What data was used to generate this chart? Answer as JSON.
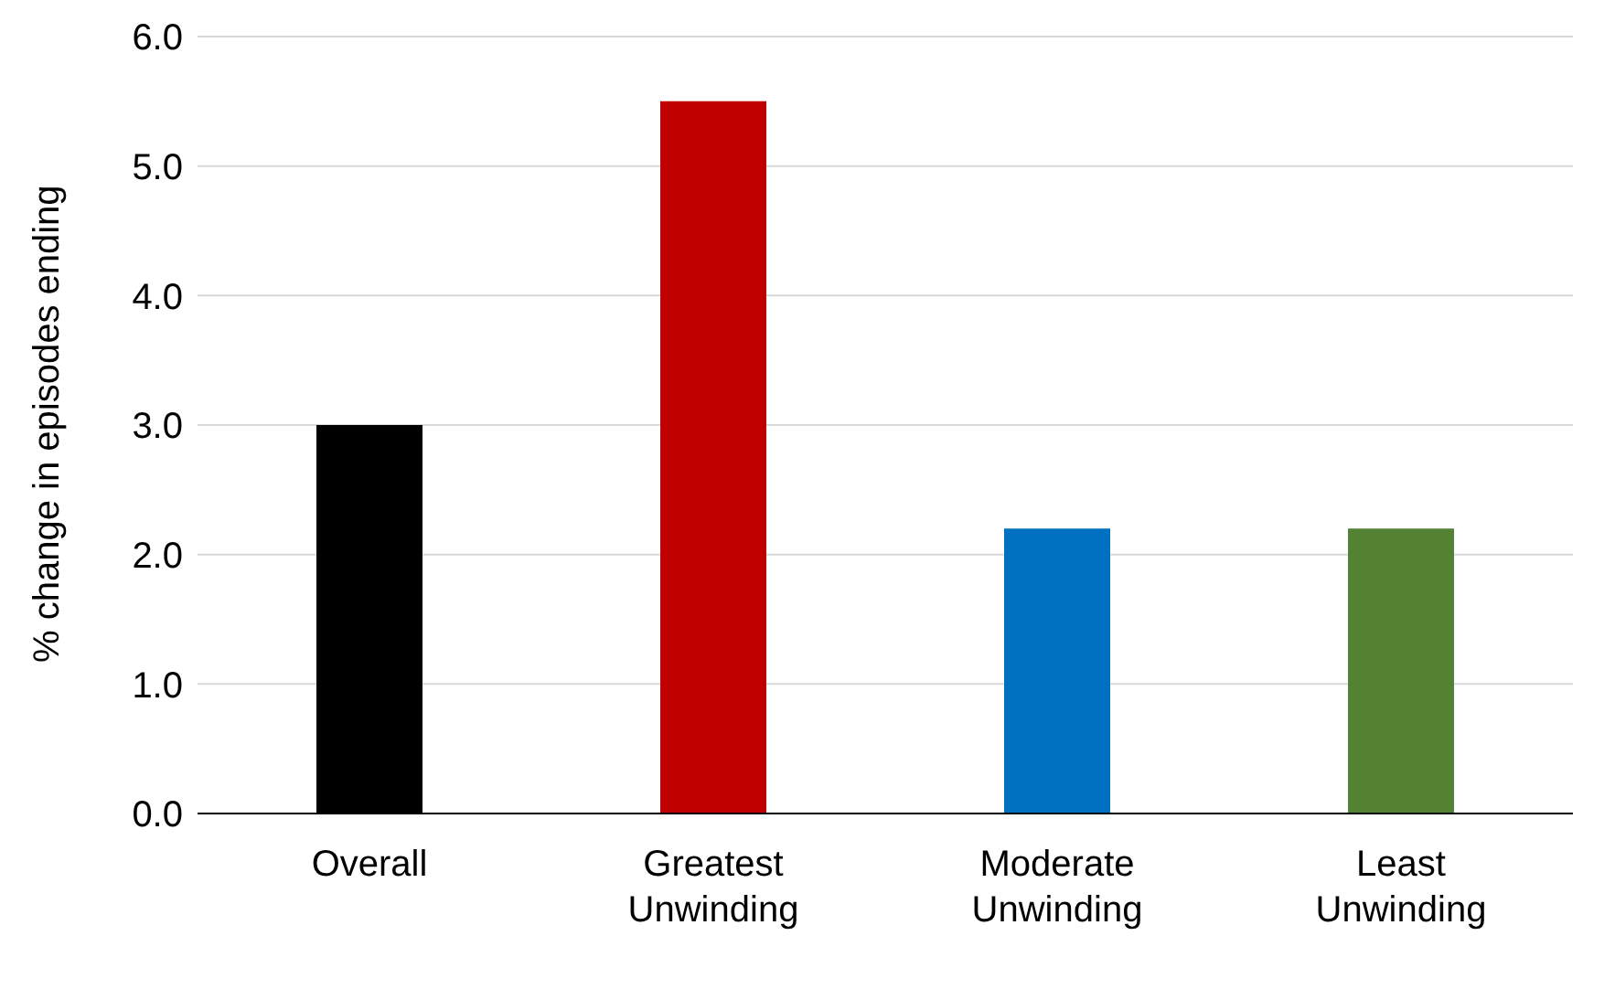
{
  "chart_data": {
    "type": "bar",
    "ylabel": "% change in episodes ending",
    "categories": [
      "Overall",
      "Greatest Unwinding",
      "Moderate Unwinding",
      "Least Unwinding"
    ],
    "values": [
      3.0,
      5.5,
      2.2,
      2.2
    ],
    "colors": [
      "#000000",
      "#c00000",
      "#0070c0",
      "#548235"
    ],
    "ylim": [
      0,
      6
    ],
    "yticks": [
      {
        "value": 0,
        "label": "0.0"
      },
      {
        "value": 1,
        "label": "1.0"
      },
      {
        "value": 2,
        "label": "2.0"
      },
      {
        "value": 3,
        "label": "3.0"
      },
      {
        "value": 4,
        "label": "4.0"
      },
      {
        "value": 5,
        "label": "5.0"
      },
      {
        "value": 6,
        "label": "6.0"
      }
    ],
    "grid": "y",
    "legend": false
  }
}
